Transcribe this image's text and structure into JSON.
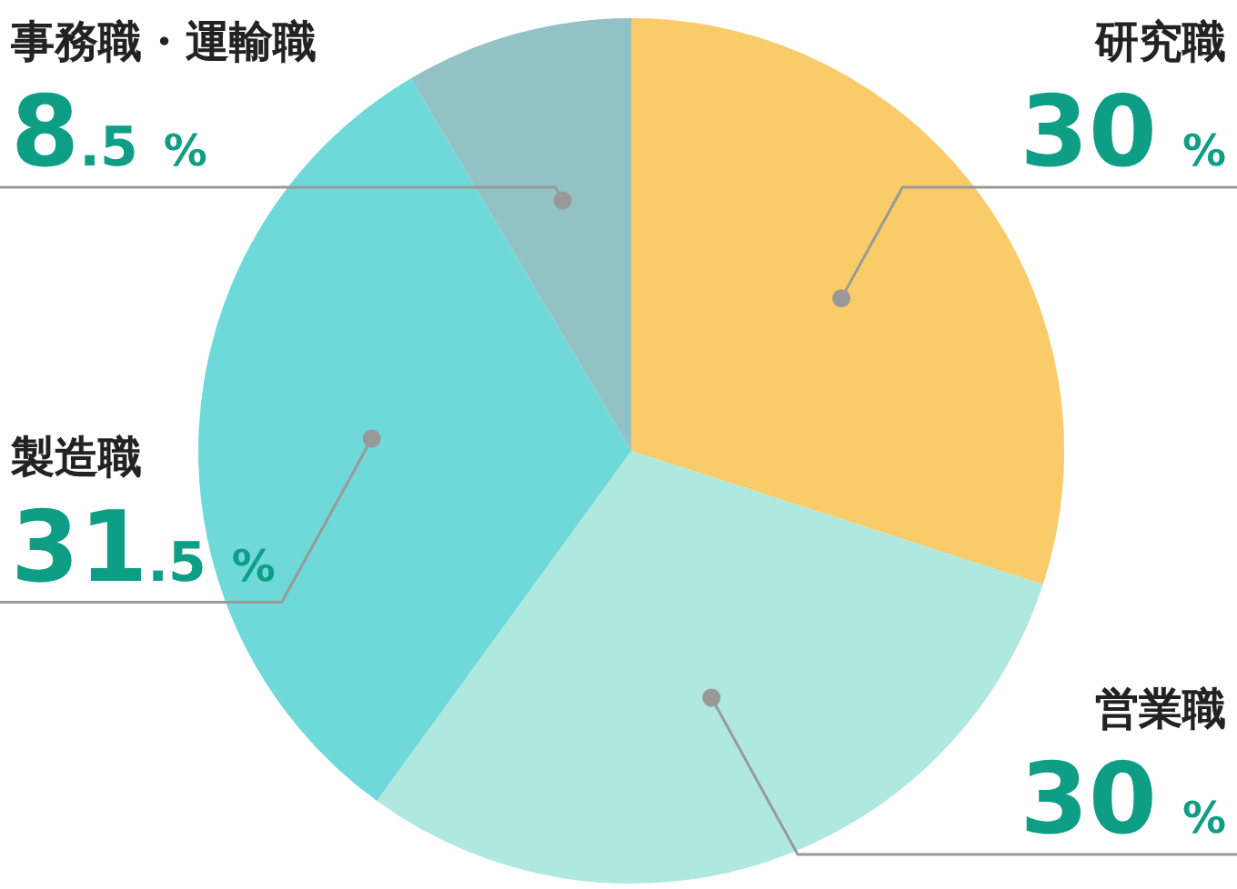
{
  "chart_data": {
    "type": "pie",
    "categories": [
      "研究職",
      "営業職",
      "製造職",
      "事務職・運輸職"
    ],
    "values": [
      30,
      30,
      31.5,
      8.5
    ],
    "colors": [
      "#f9cb69",
      "#aee8df",
      "#6fd9d9",
      "#93c2c4"
    ],
    "value_labels": [
      "30 %",
      "30 %",
      "31.5 %",
      "8.5 %"
    ]
  }
}
